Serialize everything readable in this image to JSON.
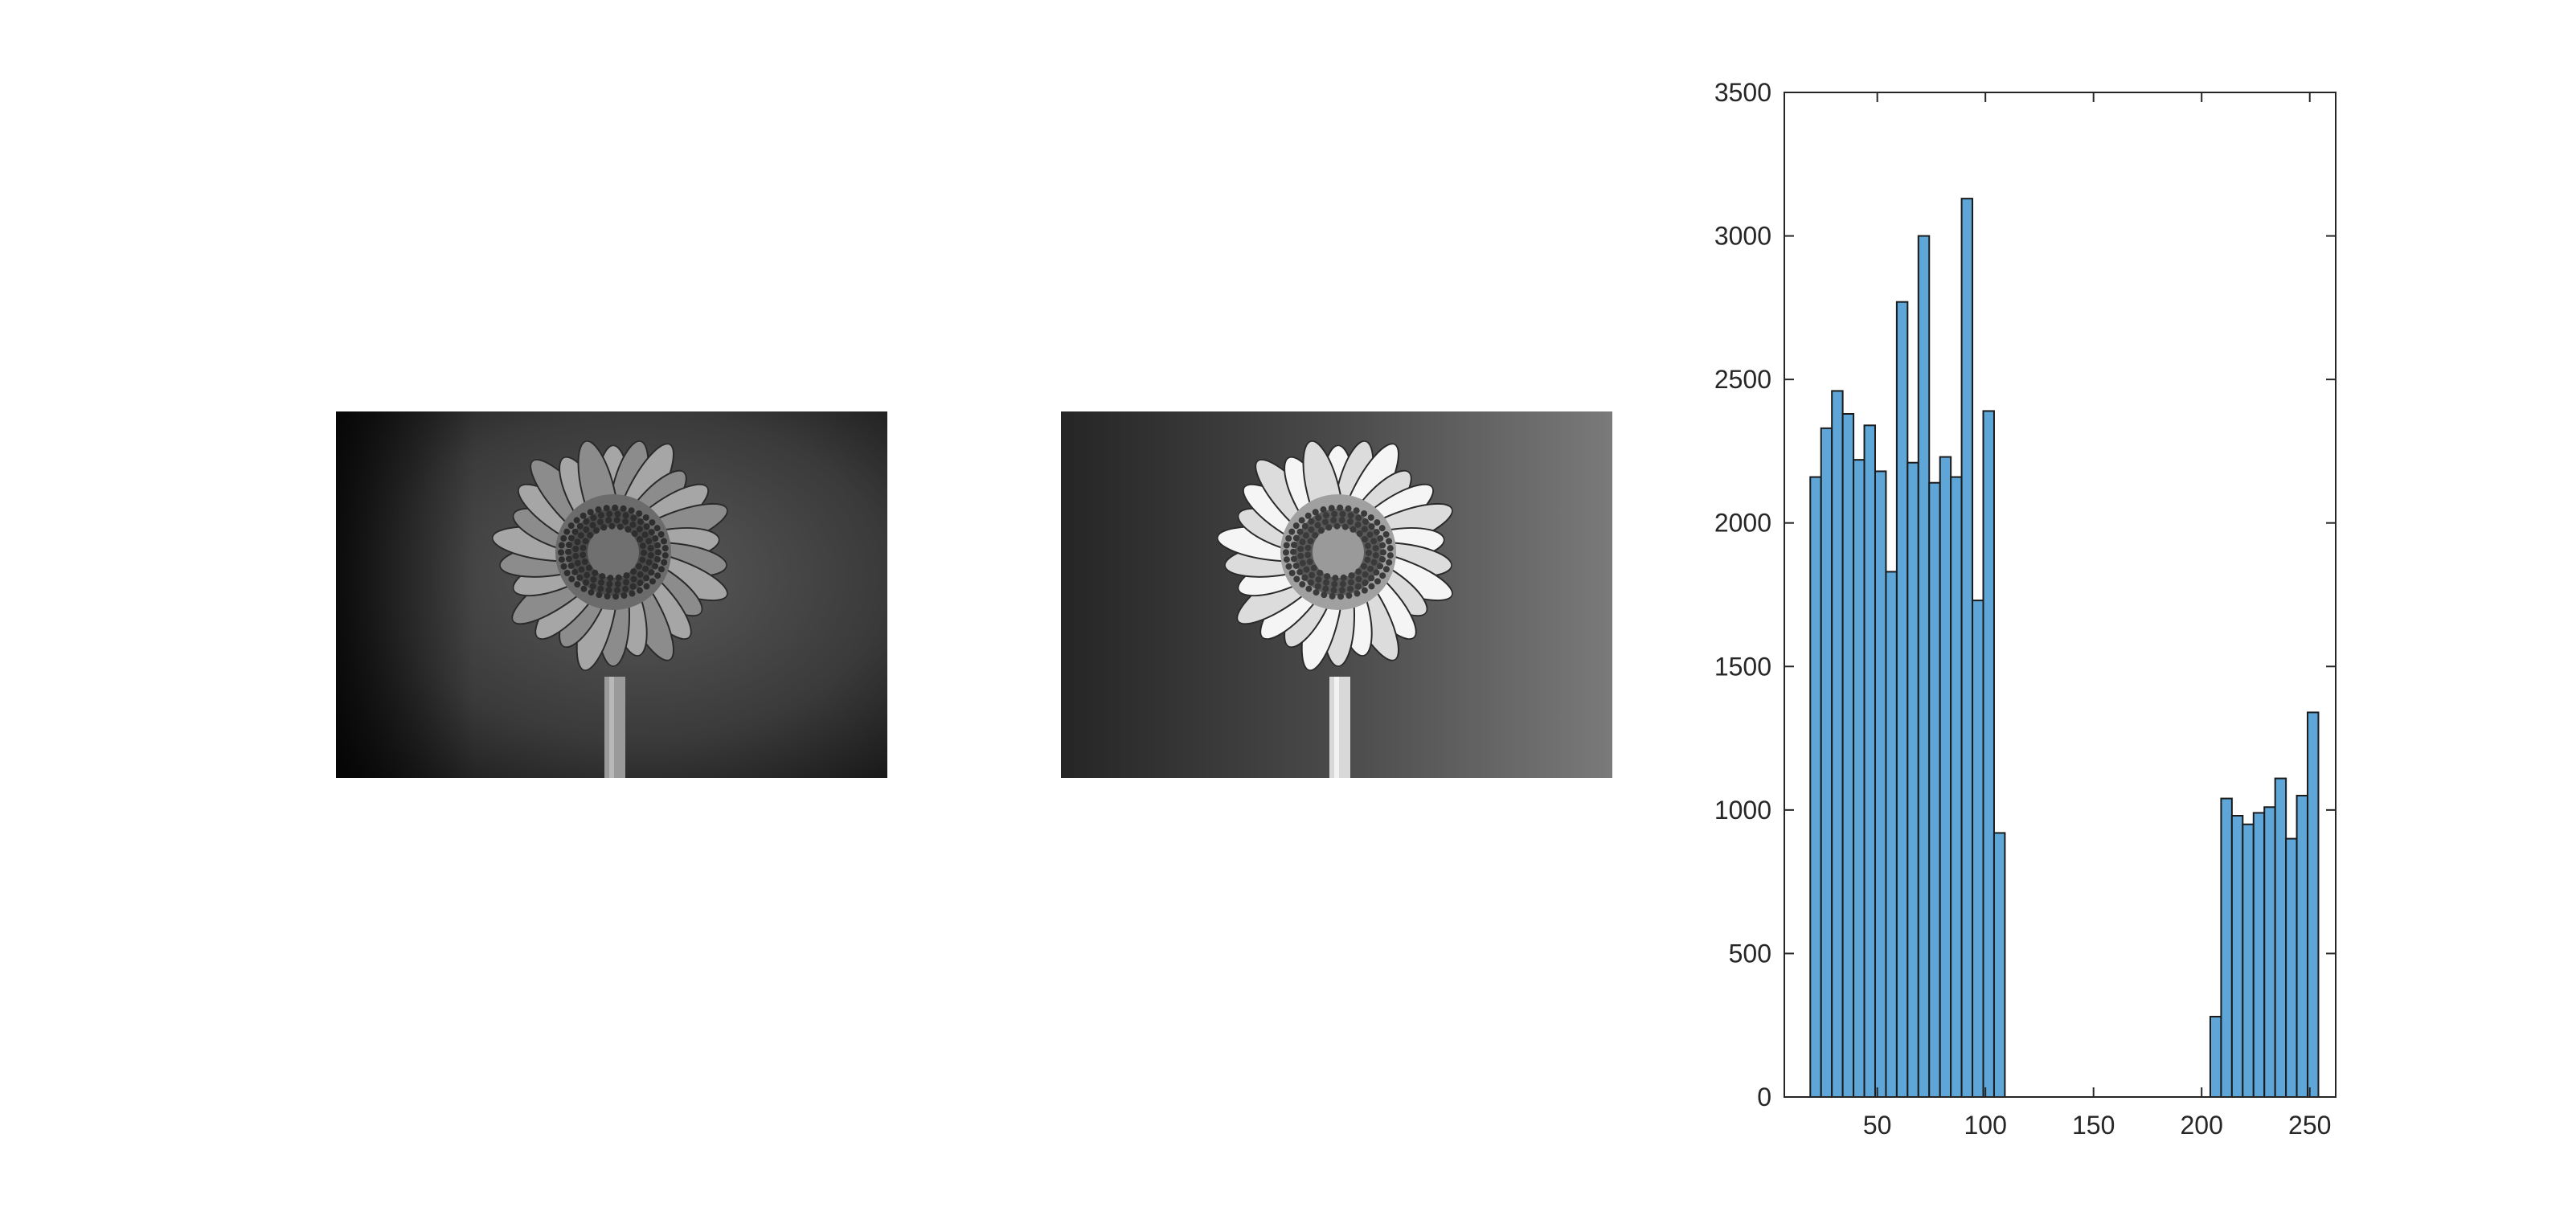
{
  "images": [
    {
      "name": "original-grayscale-flower",
      "description_icon": "flower-photo-icon"
    },
    {
      "name": "enhanced-grayscale-flower",
      "description_icon": "flower-photo-icon"
    }
  ],
  "colors": {
    "bar_fill": "#5ea6d8",
    "bar_edge": "#1a1a1a",
    "axis": "#262626",
    "background": "#ffffff"
  },
  "chart_data": {
    "type": "bar",
    "title": "",
    "xlabel": "",
    "ylabel": "",
    "xlim": [
      7,
      262
    ],
    "ylim": [
      0,
      3500
    ],
    "xticks": [
      50,
      100,
      150,
      200,
      250
    ],
    "yticks": [
      0,
      500,
      1000,
      1500,
      2000,
      2500,
      3000,
      3500
    ],
    "bin_width": 5,
    "bin_start": 19,
    "values": [
      2160,
      2330,
      2460,
      2380,
      2220,
      2340,
      2180,
      1830,
      2770,
      2210,
      3000,
      2140,
      2230,
      2160,
      3130,
      1730,
      2390,
      920,
      0,
      0,
      0,
      0,
      0,
      0,
      0,
      0,
      0,
      0,
      0,
      0,
      0,
      0,
      0,
      0,
      0,
      0,
      0,
      280,
      1040,
      980,
      950,
      990,
      1010,
      1110,
      900,
      1050,
      1340
    ],
    "grid": false,
    "box": true
  }
}
